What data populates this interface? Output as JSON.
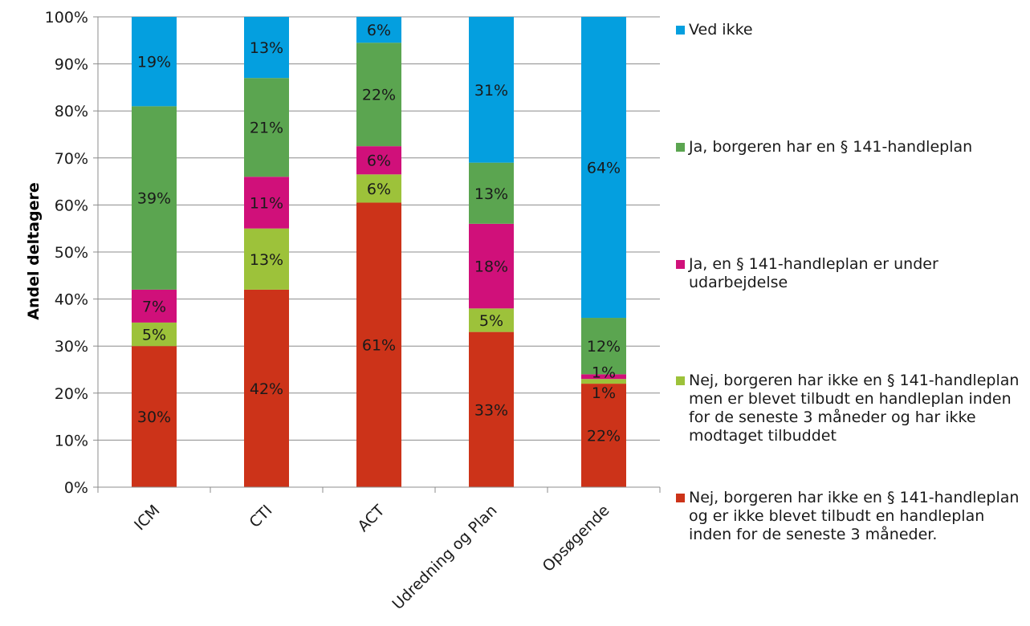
{
  "chart_data": {
    "type": "bar",
    "stacked": true,
    "percent": true,
    "categories": [
      "ICM",
      "CTI",
      "ACT",
      "Udredning og Plan",
      "Opsøgende"
    ],
    "ylabel": "Andel deltagere",
    "ylim": [
      0,
      100
    ],
    "yticks": [
      "0%",
      "10%",
      "20%",
      "30%",
      "40%",
      "50%",
      "60%",
      "70%",
      "80%",
      "90%",
      "100%"
    ],
    "grid": true,
    "legend_position": "right",
    "series": [
      {
        "name": "Nej, borgeren har ikke en § 141-handleplan og er ikke blevet tilbudt en handleplan inden for de seneste 3 måneder.",
        "color": "#CC3319",
        "values": [
          30,
          42,
          60.5,
          33,
          22
        ],
        "labels": [
          "30%",
          "42%",
          "61%",
          "33%",
          "22%"
        ]
      },
      {
        "name": "Nej, borgeren har ikke en § 141-handleplan men er blevet tilbudt en handleplan inden for de seneste 3 måneder og har ikke modtaget tilbuddet",
        "color": "#9DC23A",
        "values": [
          5,
          13,
          6,
          5,
          1
        ],
        "labels": [
          "5%",
          "13%",
          "6%",
          "5%",
          "1%"
        ]
      },
      {
        "name": "Ja, en § 141-handleplan er under udarbejdelse",
        "color": "#D0107A",
        "values": [
          7,
          11,
          6,
          18,
          1
        ],
        "labels": [
          "7%",
          "11%",
          "6%",
          "18%",
          "1%"
        ]
      },
      {
        "name": "Ja, borgeren har en § 141-handleplan",
        "color": "#5BA550",
        "values": [
          39,
          21,
          22,
          13,
          12
        ],
        "labels": [
          "39%",
          "21%",
          "22%",
          "13%",
          "12%"
        ]
      },
      {
        "name": "Ved ikke",
        "color": "#049FDF",
        "values": [
          19,
          13,
          5.5,
          31,
          64
        ],
        "labels": [
          "19%",
          "13%",
          "6%",
          "31%",
          "64%"
        ]
      }
    ]
  }
}
